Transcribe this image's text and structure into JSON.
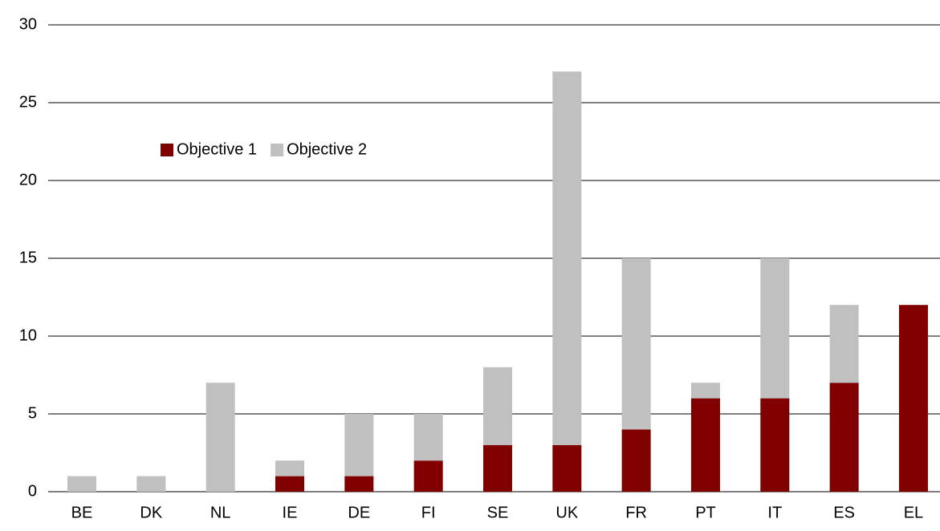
{
  "chart_data": {
    "type": "stacked_bar",
    "categories": [
      "BE",
      "DK",
      "NL",
      "IE",
      "DE",
      "FI",
      "SE",
      "UK",
      "FR",
      "PT",
      "IT",
      "ES",
      "EL"
    ],
    "series": [
      {
        "name": "Objective 1",
        "color": "#800000",
        "values": [
          0,
          0,
          0,
          1,
          1,
          2,
          3,
          3,
          4,
          6,
          6,
          7,
          12
        ]
      },
      {
        "name": "Objective 2",
        "color": "#c0c0c0",
        "values": [
          1,
          1,
          7,
          1,
          4,
          3,
          5,
          24,
          11,
          1,
          9,
          5,
          0
        ]
      }
    ],
    "ylim": [
      0,
      30
    ],
    "yticks": [
      0,
      5,
      10,
      15,
      20,
      25,
      30
    ],
    "grid": true,
    "legend": "upper left"
  }
}
